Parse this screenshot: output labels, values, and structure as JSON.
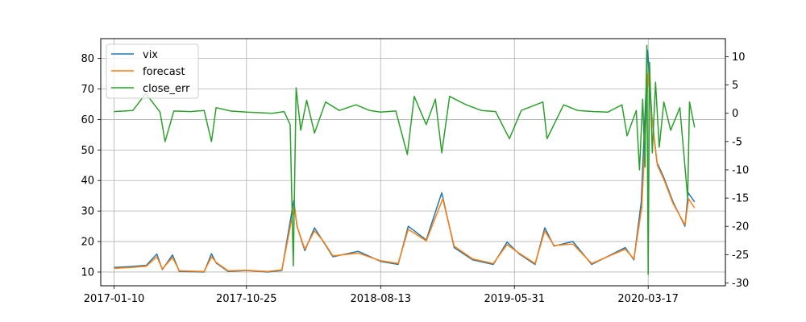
{
  "chart_data": {
    "type": "line",
    "x_axis": {
      "type": "date",
      "range": [
        "2016-12-12",
        "2020-09-01"
      ],
      "ticks": [
        "2017-01-10",
        "2017-10-25",
        "2018-08-13",
        "2019-05-31",
        "2020-03-17"
      ]
    },
    "y_left": {
      "range": [
        5.5,
        86.5
      ],
      "ticks": [
        10,
        20,
        30,
        40,
        50,
        60,
        70,
        80
      ]
    },
    "y_right": {
      "range": [
        -30.5,
        13.2
      ],
      "ticks": [
        -30,
        -25,
        -20,
        -15,
        -10,
        -5,
        0,
        5,
        10
      ]
    },
    "grid": true,
    "legend": {
      "position": "upper-left",
      "entries": [
        "vix",
        "forecast",
        "close_err"
      ]
    },
    "series": [
      {
        "name": "vix",
        "axis": "left",
        "color": "#1f77b4",
        "points": [
          [
            "2017-01-10",
            11.5
          ],
          [
            "2017-02-15",
            11.8
          ],
          [
            "2017-03-21",
            12.2
          ],
          [
            "2017-04-13",
            15.9
          ],
          [
            "2017-04-25",
            10.8
          ],
          [
            "2017-05-17",
            15.6
          ],
          [
            "2017-06-01",
            10.2
          ],
          [
            "2017-07-25",
            10.0
          ],
          [
            "2017-08-10",
            16.0
          ],
          [
            "2017-08-20",
            13.0
          ],
          [
            "2017-09-15",
            10.2
          ],
          [
            "2017-10-25",
            10.5
          ],
          [
            "2017-12-10",
            10.0
          ],
          [
            "2018-01-10",
            10.5
          ],
          [
            "2018-02-05",
            33.5
          ],
          [
            "2018-02-12",
            25.0
          ],
          [
            "2018-03-01",
            17.0
          ],
          [
            "2018-03-22",
            24.5
          ],
          [
            "2018-04-10",
            20.0
          ],
          [
            "2018-05-01",
            15.0
          ],
          [
            "2018-06-25",
            16.8
          ],
          [
            "2018-08-13",
            13.5
          ],
          [
            "2018-09-20",
            12.5
          ],
          [
            "2018-10-12",
            25.0
          ],
          [
            "2018-11-20",
            20.5
          ],
          [
            "2018-12-24",
            36.0
          ],
          [
            "2019-01-20",
            18.0
          ],
          [
            "2019-03-01",
            14.0
          ],
          [
            "2019-04-15",
            12.5
          ],
          [
            "2019-05-15",
            19.8
          ],
          [
            "2019-06-10",
            16.0
          ],
          [
            "2019-07-15",
            12.5
          ],
          [
            "2019-08-05",
            24.5
          ],
          [
            "2019-08-25",
            18.5
          ],
          [
            "2019-10-05",
            20.0
          ],
          [
            "2019-11-15",
            12.5
          ],
          [
            "2020-01-27",
            18.0
          ],
          [
            "2020-02-15",
            14.0
          ],
          [
            "2020-03-02",
            33.0
          ],
          [
            "2020-03-16",
            82.7
          ],
          [
            "2020-03-25",
            61.0
          ],
          [
            "2020-04-05",
            46.0
          ],
          [
            "2020-04-20",
            41.0
          ],
          [
            "2020-05-10",
            33.0
          ],
          [
            "2020-06-05",
            25.0
          ],
          [
            "2020-06-12",
            36.0
          ],
          [
            "2020-06-26",
            33.0
          ]
        ]
      },
      {
        "name": "forecast",
        "axis": "left",
        "color": "#ff7f0e",
        "points": [
          [
            "2017-01-10",
            11.2
          ],
          [
            "2017-02-15",
            11.5
          ],
          [
            "2017-03-21",
            11.9
          ],
          [
            "2017-04-13",
            15.0
          ],
          [
            "2017-04-25",
            11.0
          ],
          [
            "2017-05-17",
            14.8
          ],
          [
            "2017-06-01",
            10.4
          ],
          [
            "2017-07-25",
            10.2
          ],
          [
            "2017-08-10",
            15.0
          ],
          [
            "2017-08-20",
            13.2
          ],
          [
            "2017-09-15",
            10.4
          ],
          [
            "2017-10-25",
            10.6
          ],
          [
            "2017-12-10",
            10.2
          ],
          [
            "2018-01-10",
            10.7
          ],
          [
            "2018-02-06",
            31.5
          ],
          [
            "2018-02-13",
            24.5
          ],
          [
            "2018-03-01",
            17.5
          ],
          [
            "2018-03-22",
            23.5
          ],
          [
            "2018-04-10",
            20.2
          ],
          [
            "2018-05-01",
            15.3
          ],
          [
            "2018-06-25",
            16.2
          ],
          [
            "2018-08-13",
            13.7
          ],
          [
            "2018-09-20",
            12.8
          ],
          [
            "2018-10-12",
            24.0
          ],
          [
            "2018-11-20",
            20.2
          ],
          [
            "2018-12-26",
            34.0
          ],
          [
            "2019-01-20",
            18.5
          ],
          [
            "2019-03-01",
            14.3
          ],
          [
            "2019-04-15",
            12.8
          ],
          [
            "2019-05-15",
            19.0
          ],
          [
            "2019-06-10",
            16.2
          ],
          [
            "2019-07-15",
            12.8
          ],
          [
            "2019-08-05",
            23.5
          ],
          [
            "2019-08-25",
            18.7
          ],
          [
            "2019-10-05",
            19.2
          ],
          [
            "2019-11-15",
            12.8
          ],
          [
            "2020-01-27",
            17.5
          ],
          [
            "2020-02-15",
            14.3
          ],
          [
            "2020-03-03",
            31.0
          ],
          [
            "2020-03-17",
            75.0
          ],
          [
            "2020-03-26",
            59.0
          ],
          [
            "2020-04-06",
            45.0
          ],
          [
            "2020-04-21",
            40.0
          ],
          [
            "2020-05-10",
            32.5
          ],
          [
            "2020-06-05",
            25.5
          ],
          [
            "2020-06-13",
            34.0
          ],
          [
            "2020-06-26",
            31.0
          ]
        ]
      },
      {
        "name": "close_err",
        "axis": "right",
        "color": "#2ca02c",
        "points": [
          [
            "2017-01-10",
            0.3
          ],
          [
            "2017-02-20",
            0.5
          ],
          [
            "2017-03-20",
            3.5
          ],
          [
            "2017-04-20",
            0.2
          ],
          [
            "2017-05-01",
            -5.0
          ],
          [
            "2017-05-20",
            0.4
          ],
          [
            "2017-06-25",
            0.3
          ],
          [
            "2017-07-25",
            0.5
          ],
          [
            "2017-08-10",
            -5.0
          ],
          [
            "2017-08-20",
            1.0
          ],
          [
            "2017-09-20",
            0.4
          ],
          [
            "2017-10-25",
            0.2
          ],
          [
            "2017-12-20",
            0.0
          ],
          [
            "2018-01-15",
            0.3
          ],
          [
            "2018-01-28",
            -2.0
          ],
          [
            "2018-02-04",
            -27.0
          ],
          [
            "2018-02-10",
            4.5
          ],
          [
            "2018-02-20",
            -3.0
          ],
          [
            "2018-03-05",
            2.3
          ],
          [
            "2018-03-22",
            -3.5
          ],
          [
            "2018-04-15",
            2.0
          ],
          [
            "2018-05-15",
            0.5
          ],
          [
            "2018-06-20",
            1.5
          ],
          [
            "2018-07-20",
            0.5
          ],
          [
            "2018-08-13",
            0.2
          ],
          [
            "2018-09-15",
            0.4
          ],
          [
            "2018-10-10",
            -7.3
          ],
          [
            "2018-10-25",
            3.0
          ],
          [
            "2018-11-20",
            -2.0
          ],
          [
            "2018-12-10",
            2.5
          ],
          [
            "2018-12-24",
            -7.0
          ],
          [
            "2019-01-10",
            3.0
          ],
          [
            "2019-02-15",
            1.5
          ],
          [
            "2019-03-20",
            0.5
          ],
          [
            "2019-04-20",
            0.3
          ],
          [
            "2019-05-20",
            -4.5
          ],
          [
            "2019-06-15",
            0.5
          ],
          [
            "2019-08-01",
            2.0
          ],
          [
            "2019-08-10",
            -4.5
          ],
          [
            "2019-09-15",
            1.5
          ],
          [
            "2019-10-15",
            0.5
          ],
          [
            "2019-11-20",
            0.3
          ],
          [
            "2019-12-20",
            0.2
          ],
          [
            "2020-01-20",
            1.5
          ],
          [
            "2020-01-31",
            -4.0
          ],
          [
            "2020-02-20",
            0.5
          ],
          [
            "2020-02-27",
            -10.0
          ],
          [
            "2020-03-05",
            2.5
          ],
          [
            "2020-03-10",
            -9.5
          ],
          [
            "2020-03-14",
            12.0
          ],
          [
            "2020-03-17",
            -28.5
          ],
          [
            "2020-03-20",
            9.0
          ],
          [
            "2020-03-26",
            -7.0
          ],
          [
            "2020-04-02",
            5.5
          ],
          [
            "2020-04-10",
            -6.0
          ],
          [
            "2020-04-20",
            2.0
          ],
          [
            "2020-05-05",
            -3.0
          ],
          [
            "2020-05-25",
            1.0
          ],
          [
            "2020-06-11",
            -15.0
          ],
          [
            "2020-06-15",
            2.0
          ],
          [
            "2020-06-26",
            -2.5
          ]
        ]
      }
    ]
  }
}
